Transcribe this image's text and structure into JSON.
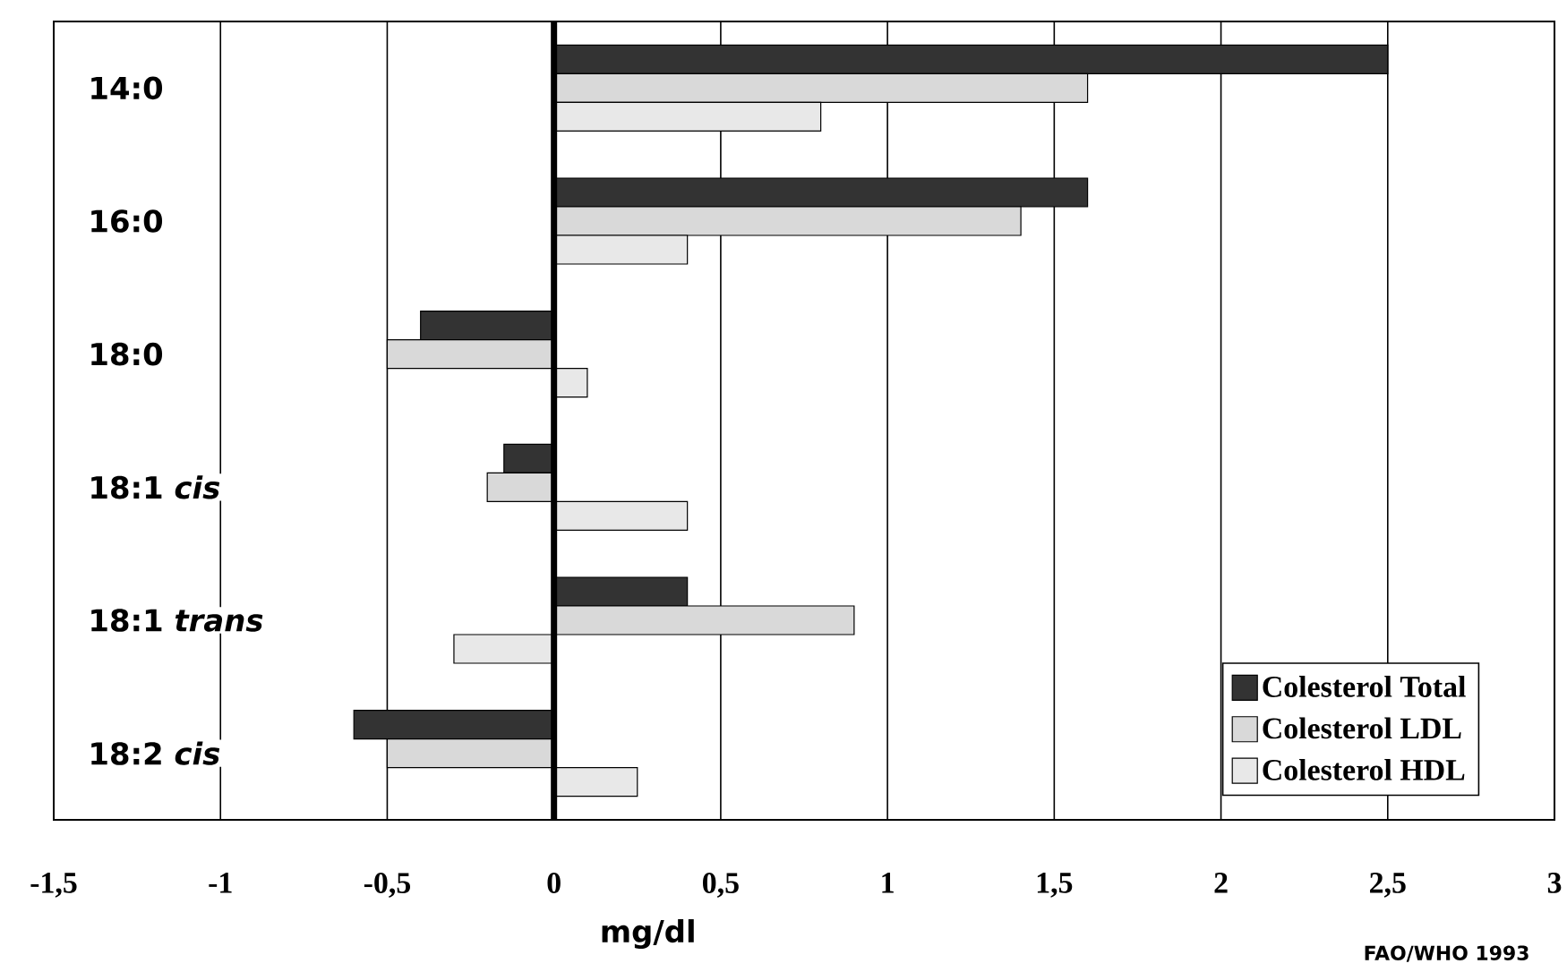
{
  "chart_data": {
    "type": "bar",
    "orientation": "horizontal",
    "xlabel": "mg/dl",
    "categories": [
      "14:0",
      "16:0",
      "18:0",
      "18:1 *cis*",
      "18:1 *trans*",
      "18:2 *cis*"
    ],
    "series": [
      {
        "name": "Colesterol Total",
        "color": "#333333",
        "values": [
          2.5,
          1.6,
          -0.4,
          -0.15,
          0.4,
          -0.6
        ]
      },
      {
        "name": "Colesterol LDL",
        "color": "#d9d9d9",
        "values": [
          1.6,
          1.4,
          -0.5,
          -0.2,
          0.9,
          -0.5
        ]
      },
      {
        "name": "Colesterol HDL",
        "color": "#e8e8e8",
        "values": [
          0.8,
          0.4,
          0.1,
          0.4,
          -0.3,
          0.25
        ]
      }
    ],
    "xlim": [
      -1.5,
      3
    ],
    "xticks": [
      {
        "value": -1.5,
        "label": "-1,5"
      },
      -1,
      {
        "value": -0.5,
        "label": "-0,5"
      },
      0,
      {
        "value": 0.5,
        "label": "0,5"
      },
      1,
      {
        "value": 1.5,
        "label": "1,5"
      },
      2,
      {
        "value": 2.5,
        "label": "2,5"
      },
      3
    ],
    "grid": "x",
    "legend": "bottom right",
    "annotations": [
      "FAO/WHO 1993"
    ]
  }
}
